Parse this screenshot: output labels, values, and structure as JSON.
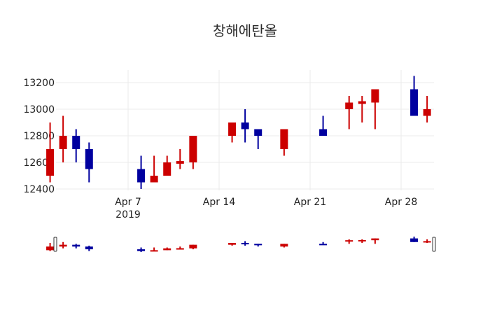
{
  "title": "창해에탄올",
  "colors": {
    "increasing": "#cc0000",
    "decreasing": "#00009f",
    "grid": "#ebebeb",
    "background": "#ffffff",
    "slider_handle": "#333333"
  },
  "chart_data": {
    "type": "candlestick",
    "title": "창해에탄올",
    "xlabel": "",
    "ylabel": "",
    "ylim": [
      12400,
      13250
    ],
    "y_ticks": [
      12400,
      12600,
      12800,
      13000,
      13200
    ],
    "x_ticks": [
      {
        "label": "Apr 7",
        "sublabel": "2019",
        "date": "2019-04-07"
      },
      {
        "label": "Apr 14",
        "sublabel": "",
        "date": "2019-04-14"
      },
      {
        "label": "Apr 21",
        "sublabel": "",
        "date": "2019-04-21"
      },
      {
        "label": "Apr 28",
        "sublabel": "",
        "date": "2019-04-28"
      }
    ],
    "grid": true,
    "rangeslider": true,
    "legend": false,
    "candles": [
      {
        "date": "2019-04-01",
        "day": 1,
        "open": 12500,
        "high": 12900,
        "low": 12450,
        "close": 12700
      },
      {
        "date": "2019-04-02",
        "day": 2,
        "open": 12700,
        "high": 12950,
        "low": 12600,
        "close": 12800
      },
      {
        "date": "2019-04-03",
        "day": 3,
        "open": 12800,
        "high": 12850,
        "low": 12600,
        "close": 12700
      },
      {
        "date": "2019-04-04",
        "day": 4,
        "open": 12700,
        "high": 12750,
        "low": 12450,
        "close": 12550
      },
      {
        "date": "2019-04-08",
        "day": 8,
        "open": 12550,
        "high": 12650,
        "low": 12400,
        "close": 12450
      },
      {
        "date": "2019-04-09",
        "day": 9,
        "open": 12450,
        "high": 12650,
        "low": 12450,
        "close": 12500
      },
      {
        "date": "2019-04-10",
        "day": 10,
        "open": 12500,
        "high": 12650,
        "low": 12500,
        "close": 12600
      },
      {
        "date": "2019-04-11",
        "day": 11,
        "open": 12590,
        "high": 12700,
        "low": 12550,
        "close": 12610
      },
      {
        "date": "2019-04-12",
        "day": 12,
        "open": 12600,
        "high": 12800,
        "low": 12550,
        "close": 12800
      },
      {
        "date": "2019-04-15",
        "day": 15,
        "open": 12800,
        "high": 12900,
        "low": 12750,
        "close": 12900
      },
      {
        "date": "2019-04-16",
        "day": 16,
        "open": 12900,
        "high": 13000,
        "low": 12750,
        "close": 12850
      },
      {
        "date": "2019-04-17",
        "day": 17,
        "open": 12850,
        "high": 12850,
        "low": 12700,
        "close": 12800
      },
      {
        "date": "2019-04-19",
        "day": 19,
        "open": 12700,
        "high": 12850,
        "low": 12650,
        "close": 12850
      },
      {
        "date": "2019-04-22",
        "day": 22,
        "open": 12850,
        "high": 12950,
        "low": 12800,
        "close": 12800
      },
      {
        "date": "2019-04-24",
        "day": 24,
        "open": 13000,
        "high": 13100,
        "low": 12850,
        "close": 13050
      },
      {
        "date": "2019-04-25",
        "day": 25,
        "open": 13040,
        "high": 13100,
        "low": 12900,
        "close": 13060
      },
      {
        "date": "2019-04-26",
        "day": 26,
        "open": 13050,
        "high": 13150,
        "low": 12850,
        "close": 13150
      },
      {
        "date": "2019-04-29",
        "day": 29,
        "open": 13150,
        "high": 13250,
        "low": 12950,
        "close": 12950
      },
      {
        "date": "2019-04-30",
        "day": 30,
        "open": 12950,
        "high": 13100,
        "low": 12900,
        "close": 13000
      }
    ]
  }
}
